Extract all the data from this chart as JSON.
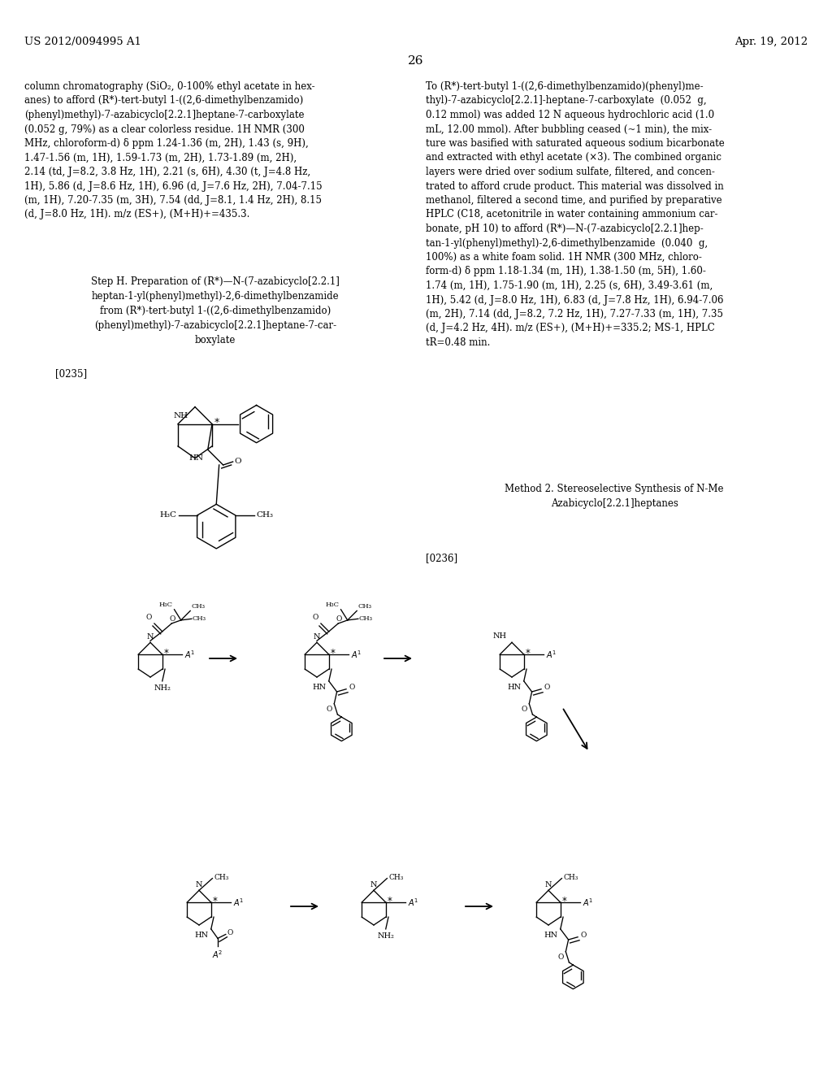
{
  "background_color": "#ffffff",
  "page_number": "26",
  "patent_left": "US 2012/0094995 A1",
  "patent_right": "Apr. 19, 2012",
  "left_col_text": "column chromatography (SiO₂, 0-100% ethyl acetate in hex-\nanes) to afford (R*)-tert-butyl 1-((2,6-dimethylbenzamido)\n(phenyl)methyl)-7-azabicyclo[2.2.1]heptane-7-carboxylate\n(0.052 g, 79%) as a clear colorless residue. 1H NMR (300\nMHz, chloroform-d) δ ppm 1.24-1.36 (m, 2H), 1.43 (s, 9H),\n1.47-1.56 (m, 1H), 1.59-1.73 (m, 2H), 1.73-1.89 (m, 2H),\n2.14 (td, J=8.2, 3.8 Hz, 1H), 2.21 (s, 6H), 4.30 (t, J=4.8 Hz,\n1H), 5.86 (d, J=8.6 Hz, 1H), 6.96 (d, J=7.6 Hz, 2H), 7.04-7.15\n(m, 1H), 7.20-7.35 (m, 3H), 7.54 (dd, J=8.1, 1.4 Hz, 2H), 8.15\n(d, J=8.0 Hz, 1H). m/z (ES+), (M+H)+=435.3.",
  "right_col_text": "To (R*)-tert-butyl 1-((2,6-dimethylbenzamido)(phenyl)me-\nthyl)-7-azabicyclo[2.2.1]-heptane-7-carboxylate  (0.052  g,\n0.12 mmol) was added 12 N aqueous hydrochloric acid (1.0\nmL, 12.00 mmol). After bubbling ceased (~1 min), the mix-\nture was basified with saturated aqueous sodium bicarbonate\nand extracted with ethyl acetate (×3). The combined organic\nlayers were dried over sodium sulfate, filtered, and concen-\ntrated to afford crude product. This material was dissolved in\nmethanol, filtered a second time, and purified by preparative\nHPLC (C18, acetonitrile in water containing ammonium car-\nbonate, pH 10) to afford (R*)—N-(7-azabicyclo[2.2.1]hep-\ntan-1-yl(phenyl)methyl)-2,6-dimethylbenzamide  (0.040  g,\n100%) as a white foam solid. 1H NMR (300 MHz, chloro-\nform-d) δ ppm 1.18-1.34 (m, 1H), 1.38-1.50 (m, 5H), 1.60-\n1.74 (m, 1H), 1.75-1.90 (m, 1H), 2.25 (s, 6H), 3.49-3.61 (m,\n1H), 5.42 (d, J=8.0 Hz, 1H), 6.83 (d, J=7.8 Hz, 1H), 6.94-7.06\n(m, 2H), 7.14 (dd, J=8.2, 7.2 Hz, 1H), 7.27-7.33 (m, 1H), 7.35\n(d, J=4.2 Hz, 4H). m/z (ES+), (M+H)+=335.2; MS-1, HPLC\ntR=0.48 min.",
  "step_h_text": "Step H. Preparation of (R*)—N-(7-azabicyclo[2.2.1]\nheptan-1-yl(phenyl)methyl)-2,6-dimethylbenzamide\nfrom (R*)-tert-butyl 1-((2,6-dimethylbenzamido)\n(phenyl)methyl)-7-azabicyclo[2.2.1]heptane-7-car-\nboxylate",
  "paragraph_0235": "[0235]",
  "paragraph_0236": "[0236]",
  "method2_text": "Method 2. Stereoselective Synthesis of N-Me\nAzabicyclo[2.2.1]heptanes",
  "font_size_body": 8.5,
  "font_size_header": 9.5,
  "font_size_page_num": 11
}
